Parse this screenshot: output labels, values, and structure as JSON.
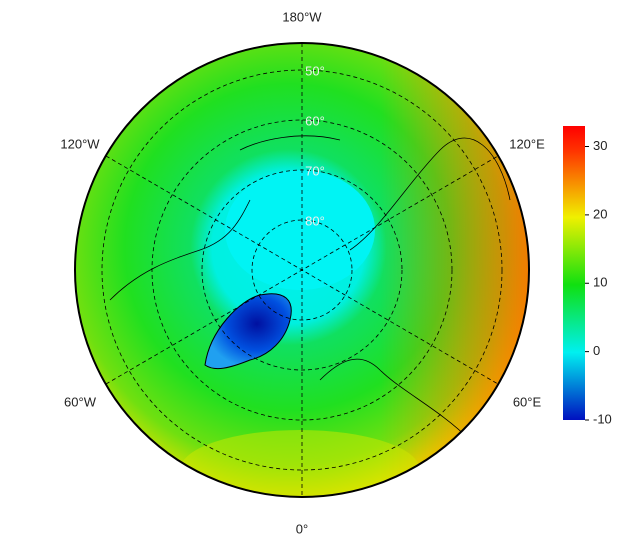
{
  "map": {
    "longitude_labels": [
      "180°W",
      "120°W",
      "120°E",
      "60°W",
      "60°E",
      "0°"
    ],
    "latitude_labels": [
      "50°",
      "60°",
      "70°",
      "80°"
    ],
    "colorbar": {
      "lim": [
        -10,
        33
      ],
      "ticks": [
        -10,
        0,
        10,
        20,
        30
      ]
    }
  }
}
